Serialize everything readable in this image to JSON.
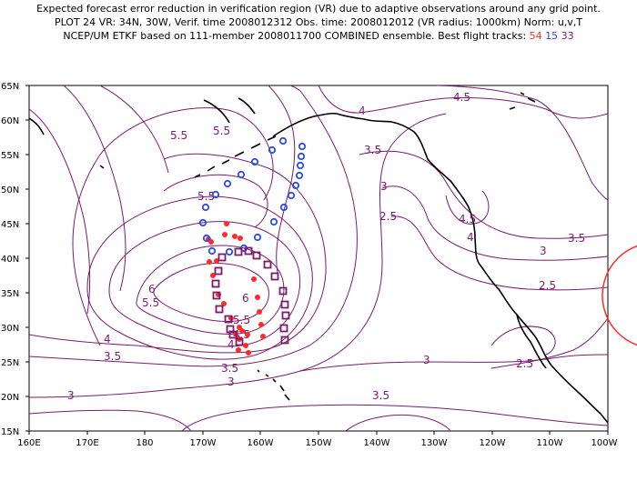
{
  "title": {
    "line1": "Expected forecast error reduction in verification region (VR) due to adaptive observations around any grid point.",
    "line2": "PLOT 24 VR: 34N, 30W, Verif. time 2008012312 Obs. time: 2008012012 (VR radius: 1000km) Norm: u,v,T",
    "line3_prefix": "NCEP/UM ETKF based on 111-member 2008011700 COMBINED ensemble.  Best flight tracks:",
    "tracks": [
      {
        "label": "54",
        "color": "#ff2a2a"
      },
      {
        "label": "15",
        "color": "#2a4de6"
      },
      {
        "label": "33",
        "color": "#7a1b6e"
      }
    ]
  },
  "axes": {
    "x_ticks": [
      "160E",
      "170E",
      "180",
      "170W",
      "160W",
      "150W",
      "140W",
      "130W",
      "120W",
      "110W",
      "100W"
    ],
    "y_ticks": [
      "65N",
      "60N",
      "55N",
      "50N",
      "45N",
      "40N",
      "35N",
      "30N",
      "25N",
      "20N",
      "15N"
    ]
  },
  "contour_labels": [
    {
      "text": "5.5",
      "x": 197,
      "y": 153
    },
    {
      "text": "5.5",
      "x": 244,
      "y": 148
    },
    {
      "text": "4",
      "x": 398,
      "y": 126
    },
    {
      "text": "4.5",
      "x": 508,
      "y": 111
    },
    {
      "text": "3.5",
      "x": 410,
      "y": 169
    },
    {
      "text": "3",
      "x": 422,
      "y": 209
    },
    {
      "text": "2.5",
      "x": 427,
      "y": 242
    },
    {
      "text": "4.5",
      "x": 514,
      "y": 245
    },
    {
      "text": "4",
      "x": 517,
      "y": 265
    },
    {
      "text": "3",
      "x": 597,
      "y": 280
    },
    {
      "text": "3.5",
      "x": 634,
      "y": 266
    },
    {
      "text": "2.5",
      "x": 602,
      "y": 318
    },
    {
      "text": "5.5",
      "x": 227,
      "y": 220
    },
    {
      "text": "6",
      "x": 167,
      "y": 322
    },
    {
      "text": "5.5",
      "x": 166,
      "y": 337
    },
    {
      "text": "6",
      "x": 270,
      "y": 332
    },
    {
      "text": "5.5",
      "x": 266,
      "y": 356
    },
    {
      "text": "4.5",
      "x": 266,
      "y": 372
    },
    {
      "text": "4",
      "x": 118,
      "y": 377
    },
    {
      "text": "4",
      "x": 254,
      "y": 383
    },
    {
      "text": "3.5",
      "x": 124,
      "y": 396
    },
    {
      "text": "3.5",
      "x": 253,
      "y": 409
    },
    {
      "text": "3",
      "x": 254,
      "y": 424
    },
    {
      "text": "3",
      "x": 469,
      "y": 400
    },
    {
      "text": "2.5",
      "x": 577,
      "y": 404
    },
    {
      "text": "3",
      "x": 78,
      "y": 439
    },
    {
      "text": "3.5",
      "x": 419,
      "y": 439
    }
  ],
  "flight_tracks": {
    "red": [
      [
        249,
        246
      ],
      [
        247,
        258
      ],
      [
        258,
        260
      ],
      [
        264,
        262
      ],
      [
        229,
        263
      ],
      [
        232,
        266
      ],
      [
        230,
        288
      ],
      [
        238,
        287
      ],
      [
        234,
        303
      ],
      [
        279,
        307
      ],
      [
        240,
        324
      ],
      [
        283,
        327
      ],
      [
        246,
        334
      ],
      [
        285,
        343
      ],
      [
        254,
        350
      ],
      [
        287,
        357
      ],
      [
        263,
        360
      ],
      [
        289,
        370
      ],
      [
        266,
        364
      ],
      [
        259,
        367
      ],
      [
        272,
        368
      ],
      [
        263,
        373
      ],
      [
        270,
        380
      ],
      [
        262,
        385
      ],
      [
        273,
        388
      ]
    ],
    "blue": [
      [
        311,
        155
      ],
      [
        332,
        161
      ],
      [
        299,
        165
      ],
      [
        331,
        172
      ],
      [
        280,
        178
      ],
      [
        330,
        182
      ],
      [
        265,
        192
      ],
      [
        329,
        193
      ],
      [
        250,
        202
      ],
      [
        325,
        204
      ],
      [
        237,
        214
      ],
      [
        320,
        215
      ],
      [
        226,
        228
      ],
      [
        312,
        228
      ],
      [
        223,
        245
      ],
      [
        301,
        244
      ],
      [
        227,
        262
      ],
      [
        283,
        261
      ],
      [
        233,
        276
      ],
      [
        268,
        273
      ],
      [
        252,
        277
      ]
    ],
    "purple": [
      [
        262,
        277
      ],
      [
        273,
        276
      ],
      [
        282,
        281
      ],
      [
        244,
        283
      ],
      [
        294,
        291
      ],
      [
        240,
        298
      ],
      [
        302,
        304
      ],
      [
        237,
        312
      ],
      [
        311,
        320
      ],
      [
        238,
        325
      ],
      [
        313,
        335
      ],
      [
        241,
        340
      ],
      [
        314,
        347
      ],
      [
        251,
        351
      ],
      [
        312,
        361
      ],
      [
        253,
        362
      ],
      [
        313,
        374
      ],
      [
        263,
        376
      ],
      [
        256,
        368
      ]
    ]
  }
}
